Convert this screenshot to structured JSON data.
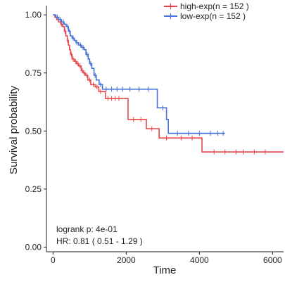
{
  "chart_data": {
    "type": "line",
    "subtype": "kaplan-meier",
    "xlabel": "Time",
    "ylabel": "Survival probability",
    "xlim": [
      -180,
      6300
    ],
    "ylim": [
      -0.02,
      1.04
    ],
    "xticks": [
      0,
      2000,
      4000,
      6000
    ],
    "yticks": [
      0.0,
      0.25,
      0.5,
      0.75,
      1.0
    ],
    "ytick_labels": [
      "0.00",
      "0.25",
      "0.50",
      "0.75",
      "1.00"
    ],
    "grid": false,
    "legend_position": "top-right",
    "annotations": {
      "logrank": "logrank p: 4e-01",
      "hr": "HR: 0.81 ( 0.51 - 1.29 )"
    },
    "series": [
      {
        "name": "high-exp(n = 152 )",
        "color": "#e8474c",
        "steps": [
          [
            0,
            1.0
          ],
          [
            50,
            0.99
          ],
          [
            100,
            0.98
          ],
          [
            150,
            0.97
          ],
          [
            210,
            0.96
          ],
          [
            260,
            0.95
          ],
          [
            310,
            0.93
          ],
          [
            350,
            0.91
          ],
          [
            390,
            0.89
          ],
          [
            420,
            0.87
          ],
          [
            450,
            0.85
          ],
          [
            480,
            0.83
          ],
          [
            520,
            0.81
          ],
          [
            580,
            0.8
          ],
          [
            640,
            0.79
          ],
          [
            700,
            0.78
          ],
          [
            770,
            0.76
          ],
          [
            820,
            0.75
          ],
          [
            880,
            0.74
          ],
          [
            950,
            0.72
          ],
          [
            1030,
            0.7
          ],
          [
            1150,
            0.69
          ],
          [
            1250,
            0.67
          ],
          [
            1430,
            0.64
          ],
          [
            1550,
            0.64
          ],
          [
            1650,
            0.64
          ],
          [
            2050,
            0.55
          ],
          [
            2550,
            0.51
          ],
          [
            2900,
            0.47
          ],
          [
            4070,
            0.41
          ],
          [
            6300,
            0.41
          ]
        ],
        "censors": [
          [
            230,
            0.96
          ],
          [
            330,
            0.93
          ],
          [
            400,
            0.89
          ],
          [
            500,
            0.83
          ],
          [
            550,
            0.81
          ],
          [
            620,
            0.8
          ],
          [
            680,
            0.79
          ],
          [
            740,
            0.78
          ],
          [
            800,
            0.76
          ],
          [
            860,
            0.75
          ],
          [
            920,
            0.74
          ],
          [
            1000,
            0.72
          ],
          [
            1100,
            0.7
          ],
          [
            1200,
            0.69
          ],
          [
            1300,
            0.67
          ],
          [
            1500,
            0.64
          ],
          [
            1600,
            0.64
          ],
          [
            1700,
            0.64
          ],
          [
            1800,
            0.64
          ],
          [
            2200,
            0.55
          ],
          [
            2400,
            0.55
          ],
          [
            2700,
            0.51
          ],
          [
            3100,
            0.47
          ],
          [
            3500,
            0.47
          ],
          [
            3800,
            0.47
          ],
          [
            4400,
            0.41
          ],
          [
            4700,
            0.41
          ],
          [
            5000,
            0.41
          ],
          [
            5200,
            0.41
          ],
          [
            5500,
            0.41
          ],
          [
            5800,
            0.41
          ]
        ]
      },
      {
        "name": "low-exp(n = 152 )",
        "color": "#4472d8",
        "steps": [
          [
            0,
            1.0
          ],
          [
            80,
            0.99
          ],
          [
            160,
            0.98
          ],
          [
            230,
            0.97
          ],
          [
            300,
            0.96
          ],
          [
            360,
            0.95
          ],
          [
            420,
            0.93
          ],
          [
            470,
            0.91
          ],
          [
            520,
            0.9
          ],
          [
            580,
            0.89
          ],
          [
            630,
            0.88
          ],
          [
            700,
            0.87
          ],
          [
            780,
            0.86
          ],
          [
            850,
            0.85
          ],
          [
            900,
            0.83
          ],
          [
            960,
            0.81
          ],
          [
            1000,
            0.79
          ],
          [
            1060,
            0.77
          ],
          [
            1120,
            0.74
          ],
          [
            1180,
            0.72
          ],
          [
            1260,
            0.7
          ],
          [
            1350,
            0.68
          ],
          [
            2850,
            0.6
          ],
          [
            3100,
            0.55
          ],
          [
            3150,
            0.49
          ],
          [
            4700,
            0.49
          ]
        ],
        "censors": [
          [
            120,
            0.99
          ],
          [
            200,
            0.98
          ],
          [
            280,
            0.97
          ],
          [
            400,
            0.95
          ],
          [
            450,
            0.93
          ],
          [
            550,
            0.9
          ],
          [
            650,
            0.88
          ],
          [
            750,
            0.87
          ],
          [
            820,
            0.86
          ],
          [
            930,
            0.83
          ],
          [
            1030,
            0.79
          ],
          [
            1150,
            0.74
          ],
          [
            1300,
            0.7
          ],
          [
            1450,
            0.68
          ],
          [
            1600,
            0.68
          ],
          [
            1750,
            0.68
          ],
          [
            1900,
            0.68
          ],
          [
            2100,
            0.68
          ],
          [
            2350,
            0.68
          ],
          [
            2600,
            0.68
          ],
          [
            3000,
            0.6
          ],
          [
            3400,
            0.49
          ],
          [
            3700,
            0.49
          ],
          [
            4000,
            0.49
          ],
          [
            4300,
            0.49
          ],
          [
            4500,
            0.49
          ],
          [
            4650,
            0.49
          ]
        ]
      }
    ]
  }
}
